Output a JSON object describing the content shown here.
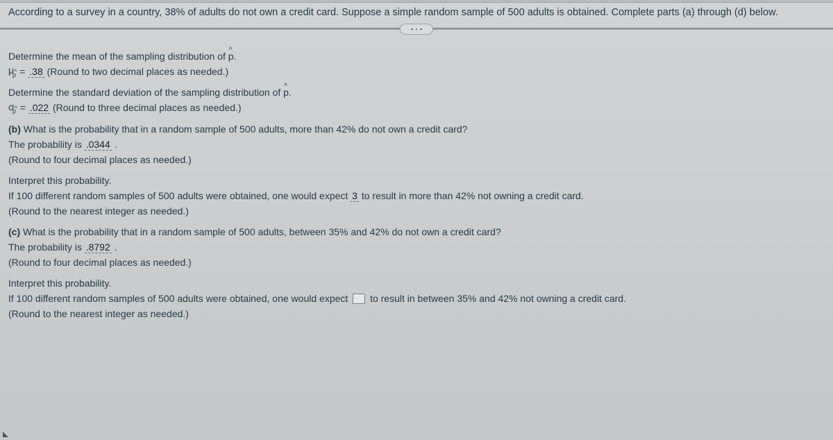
{
  "intro": "According to a survey in a country, 38% of adults do not own a credit card. Suppose a simple random sample of 500 adults is obtained. Complete parts (a) through (d) below.",
  "partA": {
    "meanPrompt": "Determine the mean of the sampling distribution of ",
    "muSymbol": "μ",
    "muSubHat": "^",
    "muSubP": "p",
    "equals": " = ",
    "meanAnswer": ".38",
    "meanHint": " (Round to two decimal places as needed.)",
    "sdPrompt": "Determine the standard deviation of the sampling distribution of ",
    "sigmaSymbol": "σ",
    "sigmaSubHat": "^",
    "sigmaSubP": "p",
    "sdAnswer": ".022",
    "sdHint": " (Round to three decimal places as needed.)"
  },
  "partB": {
    "label": "(b) ",
    "question": "What is the probability that in a random sample of 500 adults, more than 42% do not own a credit card?",
    "probLabel": "The probability is ",
    "probAnswer": ".0344",
    "probPeriod": " .",
    "roundHint": "(Round to four decimal places as needed.)",
    "interpretPrompt": "Interpret this probability.",
    "interpA": "If 100 different random samples of 500 adults were obtained, one would expect ",
    "interpAnswer": "3",
    "interpB": " to result in more than 42% not owning a credit card.",
    "interpHint": "(Round to the nearest integer as needed.)"
  },
  "partC": {
    "label": "(c) ",
    "question": "What is the probability that in a random sample of 500 adults, between 35% and 42% do not own a credit card?",
    "probLabel": "The probability is ",
    "probAnswer": ".8792",
    "probPeriod": " .",
    "roundHint": "(Round to four decimal places as needed.)",
    "interpretPrompt": "Interpret this probability.",
    "interpA": "If 100 different random samples of 500 adults were obtained, one would expect ",
    "interpB": " to result in between 35% and 42% not owning a credit card.",
    "interpHint": "(Round to the nearest integer as needed.)"
  },
  "phatP": "p",
  "phatHat": "^",
  "period": "."
}
